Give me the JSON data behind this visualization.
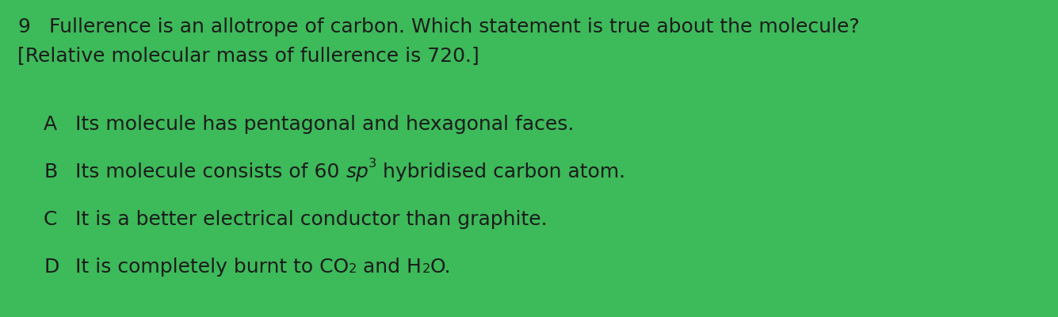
{
  "background_color": "#3dba5a",
  "question_number": "9",
  "title_line1": "Fullerence is an allotrope of carbon. Which statement is true about the molecule?",
  "title_line2": "[Relative molecular mass of fullerence is 720.]",
  "options": [
    {
      "label": "A",
      "parts": [
        {
          "text": "Its molecule has pentagonal and hexagonal faces.",
          "style": "normal"
        }
      ]
    },
    {
      "label": "B",
      "parts": [
        {
          "text": "Its molecule consists of 60 ",
          "style": "normal"
        },
        {
          "text": "sp",
          "style": "italic"
        },
        {
          "text": "3",
          "style": "superscript"
        },
        {
          "text": " hybridised carbon atom.",
          "style": "normal"
        }
      ]
    },
    {
      "label": "C",
      "parts": [
        {
          "text": "It is a better electrical conductor than graphite.",
          "style": "normal"
        }
      ]
    },
    {
      "label": "D",
      "parts": [
        {
          "text": "It is completely burnt to CO",
          "style": "normal"
        },
        {
          "text": "2",
          "style": "subscript"
        },
        {
          "text": " and H",
          "style": "normal"
        },
        {
          "text": "2",
          "style": "subscript"
        },
        {
          "text": "O.",
          "style": "normal"
        }
      ]
    }
  ],
  "text_color": "#1c1c1c",
  "title_fontsize": 18,
  "option_fontsize": 18
}
